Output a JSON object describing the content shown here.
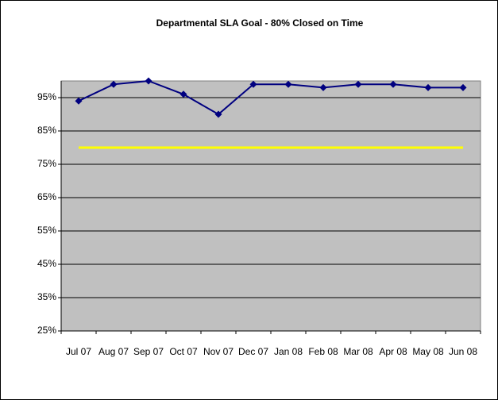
{
  "chart_data": {
    "type": "line",
    "title": "Departmental SLA Goal - 80% Closed on Time",
    "categories": [
      "Jul 07",
      "Aug 07",
      "Sep 07",
      "Oct 07",
      "Nov 07",
      "Dec 07",
      "Jan 08",
      "Feb 08",
      "Mar 08",
      "Apr 08",
      "May 08",
      "Jun 08"
    ],
    "series": [
      {
        "color": "#000080",
        "values": [
          94,
          99,
          100,
          96,
          90,
          99,
          99,
          98,
          99,
          99,
          98,
          98
        ],
        "markers": true
      },
      {
        "color": "#ffff00",
        "values": [
          80,
          80,
          80,
          80,
          80,
          80,
          80,
          80,
          80,
          80,
          80,
          80
        ],
        "markers": false
      }
    ],
    "ylim": [
      25,
      100
    ],
    "yticks": [
      {
        "value": 25,
        "label": "25%"
      },
      {
        "value": 35,
        "label": "35%"
      },
      {
        "value": 45,
        "label": "45%"
      },
      {
        "value": 55,
        "label": "55%"
      },
      {
        "value": 65,
        "label": "65%"
      },
      {
        "value": 75,
        "label": "75%"
      },
      {
        "value": 85,
        "label": "85%"
      },
      {
        "value": 95,
        "label": "95%"
      }
    ],
    "grid": true,
    "plot_background": "#c0c0c0"
  }
}
